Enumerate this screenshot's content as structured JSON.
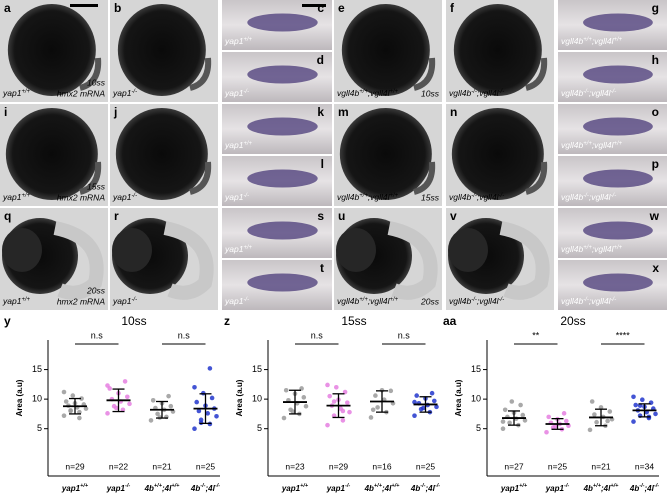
{
  "panels": [
    {
      "letter": "a",
      "label": [
        {
          "t": "yap1"
        },
        {
          "t": "+/+",
          "sup": true
        }
      ],
      "stage": "10ss",
      "probe": "hmx2 mRNA"
    },
    {
      "letter": "b",
      "label": [
        {
          "t": "yap1"
        },
        {
          "t": "-/-",
          "sup": true
        }
      ]
    },
    {
      "letter": "c",
      "label": [
        {
          "t": "yap1"
        },
        {
          "t": "+/+",
          "sup": true
        }
      ]
    },
    {
      "letter": "d",
      "label": [
        {
          "t": "yap1"
        },
        {
          "t": "-/-",
          "sup": true
        }
      ]
    },
    {
      "letter": "e",
      "label": [
        {
          "t": "vgll4b"
        },
        {
          "t": "+/+",
          "sup": true
        },
        {
          "t": ";vgll4l"
        },
        {
          "t": "+/+",
          "sup": true
        }
      ],
      "stage": "10ss"
    },
    {
      "letter": "f",
      "label": [
        {
          "t": "vgll4b"
        },
        {
          "t": "-/-",
          "sup": true
        },
        {
          "t": ";vgll4l"
        },
        {
          "t": "-/-",
          "sup": true
        }
      ]
    },
    {
      "letter": "g",
      "label": [
        {
          "t": "vgll4b"
        },
        {
          "t": "+/+",
          "sup": true
        },
        {
          "t": ";vgll4l"
        },
        {
          "t": "+/+",
          "sup": true
        }
      ]
    },
    {
      "letter": "h",
      "label": [
        {
          "t": "vgll4b"
        },
        {
          "t": "-/-",
          "sup": true
        },
        {
          "t": ";vgll4l"
        },
        {
          "t": "-/-",
          "sup": true
        }
      ]
    },
    {
      "letter": "i",
      "label": [
        {
          "t": "yap1"
        },
        {
          "t": "+/+",
          "sup": true
        }
      ],
      "stage": "15ss",
      "probe": "hmx2 mRNA"
    },
    {
      "letter": "j",
      "label": [
        {
          "t": "yap1"
        },
        {
          "t": "-/-",
          "sup": true
        }
      ]
    },
    {
      "letter": "k",
      "label": [
        {
          "t": "yap1"
        },
        {
          "t": "+/+",
          "sup": true
        }
      ]
    },
    {
      "letter": "l",
      "label": [
        {
          "t": "yap1"
        },
        {
          "t": "-/-",
          "sup": true
        }
      ]
    },
    {
      "letter": "m",
      "label": [
        {
          "t": "vgll4b"
        },
        {
          "t": "+/+",
          "sup": true
        },
        {
          "t": ";vgll4l"
        },
        {
          "t": "+/+",
          "sup": true
        }
      ],
      "stage": "15ss"
    },
    {
      "letter": "n",
      "label": [
        {
          "t": "vgll4b"
        },
        {
          "t": "-/-",
          "sup": true
        },
        {
          "t": ";vgll4l"
        },
        {
          "t": "-/-",
          "sup": true
        }
      ]
    },
    {
      "letter": "o",
      "label": [
        {
          "t": "vgll4b"
        },
        {
          "t": "+/+",
          "sup": true
        },
        {
          "t": ";vgll4l"
        },
        {
          "t": "+/+",
          "sup": true
        }
      ]
    },
    {
      "letter": "p",
      "label": [
        {
          "t": "vgll4b"
        },
        {
          "t": "-/-",
          "sup": true
        },
        {
          "t": ";vgll4l"
        },
        {
          "t": "-/-",
          "sup": true
        }
      ]
    },
    {
      "letter": "q",
      "label": [
        {
          "t": "yap1"
        },
        {
          "t": "+/+",
          "sup": true
        }
      ],
      "stage": "20ss",
      "probe": "hmx2 mRNA"
    },
    {
      "letter": "r",
      "label": [
        {
          "t": "yap1"
        },
        {
          "t": "-/-",
          "sup": true
        }
      ]
    },
    {
      "letter": "s",
      "label": [
        {
          "t": "yap1"
        },
        {
          "t": "+/+",
          "sup": true
        }
      ]
    },
    {
      "letter": "t",
      "label": [
        {
          "t": "yap1"
        },
        {
          "t": "-/-",
          "sup": true
        }
      ]
    },
    {
      "letter": "u",
      "label": [
        {
          "t": "vgll4b"
        },
        {
          "t": "+/+",
          "sup": true
        },
        {
          "t": ";vgll4l"
        },
        {
          "t": "+/+",
          "sup": true
        }
      ],
      "stage": "20ss"
    },
    {
      "letter": "v",
      "label": [
        {
          "t": "vgll4b"
        },
        {
          "t": "-/-",
          "sup": true
        },
        {
          "t": ";vgll4l"
        },
        {
          "t": "-/-",
          "sup": true
        }
      ]
    },
    {
      "letter": "w",
      "label": [
        {
          "t": "vgll4b"
        },
        {
          "t": "+/+",
          "sup": true
        },
        {
          "t": ";vgll4l"
        },
        {
          "t": "+/+",
          "sup": true
        }
      ]
    },
    {
      "letter": "x",
      "label": [
        {
          "t": "vgll4b"
        },
        {
          "t": "-/-",
          "sup": true
        },
        {
          "t": ";vgll4l"
        },
        {
          "t": "-/-",
          "sup": true
        }
      ]
    }
  ],
  "chart_data": [
    {
      "type": "strip",
      "letter": "y",
      "title": "10ss",
      "ylabel": "Area (a.u)",
      "ylim": [
        -3,
        20
      ],
      "yticks": [
        5,
        10,
        15
      ],
      "categories": [
        [
          {
            "t": "yap1"
          },
          {
            "t": "+/+",
            "sup": true
          }
        ],
        [
          {
            "t": "yap1"
          },
          {
            "t": "-/-",
            "sup": true
          }
        ],
        [
          {
            "t": "4b"
          },
          {
            "t": "+/+",
            "sup": true
          },
          {
            "t": ";4l"
          },
          {
            "t": "+/+",
            "sup": true
          }
        ],
        [
          {
            "t": "4b"
          },
          {
            "t": "-/-",
            "sup": true
          },
          {
            "t": ";4l"
          },
          {
            "t": "-/-",
            "sup": true
          }
        ]
      ],
      "groups": [
        {
          "color": "#9a9a9a",
          "n": "n=29",
          "mean": 8.8,
          "sd": 1.3,
          "values": [
            7.2,
            7.8,
            8.1,
            8.4,
            8.6,
            8.9,
            9.1,
            9.3,
            9.6,
            10.1,
            10.6,
            11.2,
            6.8,
            8.0
          ]
        },
        {
          "color": "#e57fe0",
          "n": "n=22",
          "mean": 9.8,
          "sd": 1.9,
          "values": [
            7.6,
            8.2,
            8.8,
            9.2,
            9.6,
            10.0,
            10.4,
            11.0,
            11.8,
            13.0,
            8.5,
            12.3
          ]
        },
        {
          "color": "#9a9a9a",
          "n": "n=21",
          "mean": 8.2,
          "sd": 1.4,
          "values": [
            6.4,
            7.0,
            7.5,
            7.9,
            8.2,
            8.5,
            8.8,
            9.3,
            9.8,
            10.5,
            6.9
          ]
        },
        {
          "color": "#2236cc",
          "n": "n=25",
          "mean": 8.4,
          "sd": 2.5,
          "values": [
            5.0,
            5.8,
            6.5,
            7.1,
            7.6,
            8.0,
            8.4,
            8.9,
            9.5,
            10.2,
            11.0,
            12.0,
            15.2,
            6.0
          ]
        }
      ],
      "comparisons": [
        {
          "from": 0,
          "to": 1,
          "label": "n.s"
        },
        {
          "from": 2,
          "to": 3,
          "label": "n.s"
        }
      ]
    },
    {
      "type": "strip",
      "letter": "z",
      "title": "15ss",
      "ylabel": "Area (a.u)",
      "ylim": [
        -3,
        20
      ],
      "yticks": [
        5,
        10,
        15
      ],
      "categories": [
        [
          {
            "t": "yap1"
          },
          {
            "t": "+/+",
            "sup": true
          }
        ],
        [
          {
            "t": "yap1"
          },
          {
            "t": "-/-",
            "sup": true
          }
        ],
        [
          {
            "t": "4b"
          },
          {
            "t": "+/+",
            "sup": true
          },
          {
            "t": ";4l"
          },
          {
            "t": "+/+",
            "sup": true
          }
        ],
        [
          {
            "t": "4b"
          },
          {
            "t": "-/-",
            "sup": true
          },
          {
            "t": ";4l"
          },
          {
            "t": "-/-",
            "sup": true
          }
        ]
      ],
      "groups": [
        {
          "color": "#9a9a9a",
          "n": "n=23",
          "mean": 9.5,
          "sd": 2.0,
          "values": [
            6.8,
            7.5,
            8.2,
            8.8,
            9.3,
            9.8,
            10.3,
            10.9,
            11.5,
            11.8,
            7.9
          ]
        },
        {
          "color": "#e57fe0",
          "n": "n=29",
          "mean": 8.9,
          "sd": 2.0,
          "values": [
            5.6,
            6.4,
            7.2,
            7.8,
            8.4,
            8.9,
            9.4,
            9.9,
            10.5,
            11.2,
            12.0,
            12.4,
            8.0,
            9.6
          ]
        },
        {
          "color": "#9a9a9a",
          "n": "n=16",
          "mean": 9.6,
          "sd": 1.8,
          "values": [
            6.9,
            7.8,
            8.6,
            9.3,
            9.9,
            10.6,
            11.4,
            11.5,
            8.2
          ]
        },
        {
          "color": "#2236cc",
          "n": "n=25",
          "mean": 9.1,
          "sd": 1.3,
          "values": [
            7.2,
            7.8,
            8.3,
            8.7,
            9.0,
            9.3,
            9.7,
            10.1,
            10.6,
            11.0,
            8.5,
            9.5
          ]
        }
      ],
      "comparisons": [
        {
          "from": 0,
          "to": 1,
          "label": "n.s"
        },
        {
          "from": 2,
          "to": 3,
          "label": "n.s"
        }
      ]
    },
    {
      "type": "strip",
      "letter": "aa",
      "title": "20ss",
      "ylabel": "Area (a.u)",
      "ylim": [
        -3,
        20
      ],
      "yticks": [
        5,
        10,
        15
      ],
      "categories": [
        [
          {
            "t": "yap1"
          },
          {
            "t": "+/+",
            "sup": true
          }
        ],
        [
          {
            "t": "yap1"
          },
          {
            "t": "-/-",
            "sup": true
          }
        ],
        [
          {
            "t": "4b"
          },
          {
            "t": "+/+",
            "sup": true
          },
          {
            "t": ";4l"
          },
          {
            "t": "+/+",
            "sup": true
          }
        ],
        [
          {
            "t": "4b"
          },
          {
            "t": "-/-",
            "sup": true
          },
          {
            "t": ";4l"
          },
          {
            "t": "-/-",
            "sup": true
          }
        ]
      ],
      "groups": [
        {
          "color": "#9a9a9a",
          "n": "n=27",
          "mean": 6.8,
          "sd": 1.2,
          "values": [
            5.0,
            5.6,
            6.0,
            6.4,
            6.7,
            7.0,
            7.3,
            7.7,
            8.2,
            9.0,
            9.6,
            6.2
          ]
        },
        {
          "color": "#e57fe0",
          "n": "n=25",
          "mean": 5.8,
          "sd": 0.9,
          "values": [
            4.4,
            4.9,
            5.2,
            5.5,
            5.8,
            6.0,
            6.3,
            6.6,
            7.0,
            7.6,
            5.4
          ]
        },
        {
          "color": "#9a9a9a",
          "n": "n=21",
          "mean": 6.9,
          "sd": 1.4,
          "values": [
            4.8,
            5.5,
            6.1,
            6.6,
            7.0,
            7.4,
            7.9,
            8.6,
            9.6,
            6.3
          ]
        },
        {
          "color": "#2236cc",
          "n": "n=34",
          "mean": 8.1,
          "sd": 1.1,
          "values": [
            6.2,
            6.8,
            7.2,
            7.5,
            7.8,
            8.1,
            8.4,
            8.7,
            9.0,
            9.4,
            9.9,
            10.4,
            7.0,
            8.9
          ]
        }
      ],
      "comparisons": [
        {
          "from": 0,
          "to": 1,
          "label": "**"
        },
        {
          "from": 2,
          "to": 3,
          "label": "****"
        }
      ]
    }
  ]
}
